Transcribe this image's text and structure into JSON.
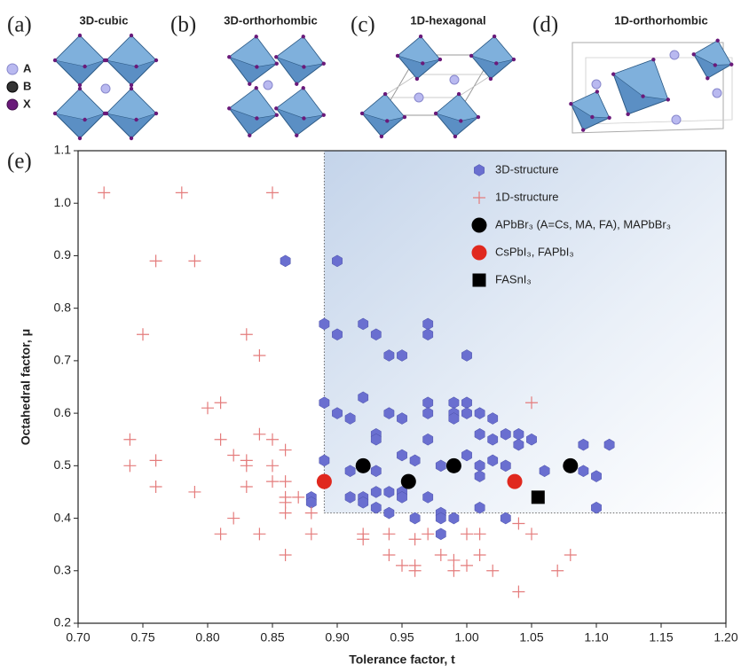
{
  "panels": [
    {
      "label": "(a)",
      "title": "3D-cubic"
    },
    {
      "label": "(b)",
      "title": "3D-orthorhombic"
    },
    {
      "label": "(c)",
      "title": "1D-hexagonal"
    },
    {
      "label": "(d)",
      "title": "1D-orthorhombic"
    }
  ],
  "atom_legend": [
    "A",
    "B",
    "X"
  ],
  "chart_label": "(e)",
  "chart_data": {
    "type": "scatter",
    "xlabel": "Tolerance factor, t",
    "ylabel": "Octahedral factor, μ",
    "xlim": [
      0.7,
      1.2
    ],
    "ylim": [
      0.2,
      1.1
    ],
    "xticks": [
      {
        "value": 0.7,
        "label": "0.70"
      },
      0.75,
      {
        "value": 0.8,
        "label": "0.80"
      },
      0.85,
      {
        "value": 0.9,
        "label": "0.90"
      },
      0.95,
      {
        "value": 1,
        "label": "1.00"
      },
      1.05,
      {
        "value": 1.1,
        "label": "1.10"
      },
      1.15,
      {
        "value": 1.2,
        "label": "1.20"
      }
    ],
    "yticks": [
      0.2,
      0.3,
      0.4,
      0.5,
      0.6,
      0.7,
      0.8,
      0.9,
      {
        "value": 1,
        "label": "1.0"
      },
      1.1
    ],
    "shaded_region": {
      "x": [
        0.89,
        1.2
      ],
      "y": [
        0.41,
        1.1
      ]
    },
    "series": [
      {
        "name": "3D-structure",
        "color": "#6a6fd0",
        "marker": "hexagon",
        "x": [
          0.86,
          0.9,
          0.89,
          0.9,
          0.92,
          0.93,
          0.94,
          0.95,
          0.97,
          0.97,
          1.0,
          0.89,
          0.9,
          0.91,
          0.92,
          0.93,
          0.93,
          0.94,
          0.95,
          0.97,
          0.97,
          0.99,
          0.99,
          0.99,
          1.0,
          1.0,
          1.01,
          1.02,
          1.01,
          1.02,
          1.03,
          1.05,
          1.04,
          1.04,
          1.09,
          1.11,
          0.89,
          0.91,
          0.93,
          0.95,
          0.96,
          0.97,
          0.98,
          0.99,
          1.0,
          1.01,
          1.01,
          1.02,
          1.03,
          1.06,
          1.09,
          1.1,
          0.88,
          0.88,
          0.91,
          0.92,
          0.92,
          0.93,
          0.94,
          0.95,
          0.95,
          0.93,
          0.94,
          0.96,
          0.97,
          0.98,
          0.98,
          0.99,
          1.01,
          1.03,
          0.98,
          1.1
        ],
        "values": [
          0.89,
          0.89,
          0.77,
          0.75,
          0.77,
          0.75,
          0.71,
          0.71,
          0.77,
          0.75,
          0.71,
          0.62,
          0.6,
          0.59,
          0.63,
          0.56,
          0.55,
          0.6,
          0.59,
          0.62,
          0.6,
          0.62,
          0.6,
          0.59,
          0.62,
          0.6,
          0.6,
          0.59,
          0.56,
          0.55,
          0.56,
          0.55,
          0.56,
          0.54,
          0.54,
          0.54,
          0.51,
          0.49,
          0.49,
          0.52,
          0.51,
          0.55,
          0.5,
          0.5,
          0.52,
          0.5,
          0.48,
          0.51,
          0.5,
          0.49,
          0.49,
          0.48,
          0.44,
          0.43,
          0.44,
          0.44,
          0.43,
          0.45,
          0.45,
          0.45,
          0.44,
          0.42,
          0.41,
          0.4,
          0.44,
          0.41,
          0.4,
          0.4,
          0.42,
          0.4,
          0.37,
          0.42
        ]
      },
      {
        "name": "1D-structure",
        "color": "#e47c7c",
        "marker": "plus",
        "x": [
          0.72,
          0.78,
          0.85,
          0.76,
          0.79,
          0.75,
          0.83,
          0.84,
          0.8,
          0.81,
          0.74,
          0.81,
          0.84,
          0.85,
          0.86,
          0.74,
          0.76,
          0.82,
          0.83,
          0.83,
          0.85,
          0.85,
          0.86,
          0.76,
          0.79,
          0.83,
          0.86,
          0.87,
          0.86,
          0.86,
          0.88,
          0.81,
          0.82,
          0.84,
          0.88,
          0.86,
          0.92,
          0.92,
          0.94,
          0.94,
          0.95,
          0.96,
          0.96,
          0.96,
          0.97,
          0.98,
          0.99,
          0.99,
          1.0,
          1.0,
          1.01,
          1.01,
          1.02,
          1.04,
          1.05,
          1.05,
          1.07,
          1.08,
          1.04
        ],
        "values": [
          1.02,
          1.02,
          1.02,
          0.89,
          0.89,
          0.75,
          0.75,
          0.71,
          0.61,
          0.62,
          0.55,
          0.55,
          0.56,
          0.55,
          0.53,
          0.5,
          0.51,
          0.52,
          0.51,
          0.5,
          0.5,
          0.47,
          0.47,
          0.46,
          0.45,
          0.46,
          0.44,
          0.44,
          0.43,
          0.41,
          0.41,
          0.37,
          0.4,
          0.37,
          0.37,
          0.33,
          0.37,
          0.36,
          0.37,
          0.33,
          0.31,
          0.31,
          0.3,
          0.36,
          0.37,
          0.33,
          0.32,
          0.3,
          0.37,
          0.31,
          0.37,
          0.33,
          0.3,
          0.39,
          0.37,
          0.62,
          0.3,
          0.33,
          0.26
        ]
      },
      {
        "name": "APbBr₃ (A=Cs, MA, FA), MAPbBr₃",
        "color": "#000000",
        "marker": "circle",
        "x": [
          0.92,
          0.955,
          0.99,
          1.08
        ],
        "values": [
          0.5,
          0.47,
          0.5,
          0.5
        ]
      },
      {
        "name": "CsPbI₃, FAPbI₃",
        "color": "#e0281e",
        "marker": "circle",
        "x": [
          0.89,
          1.037
        ],
        "values": [
          0.47,
          0.47
        ]
      },
      {
        "name": "FASnI₃",
        "color": "#000000",
        "marker": "square",
        "x": [
          1.055
        ],
        "values": [
          0.44
        ]
      }
    ]
  }
}
